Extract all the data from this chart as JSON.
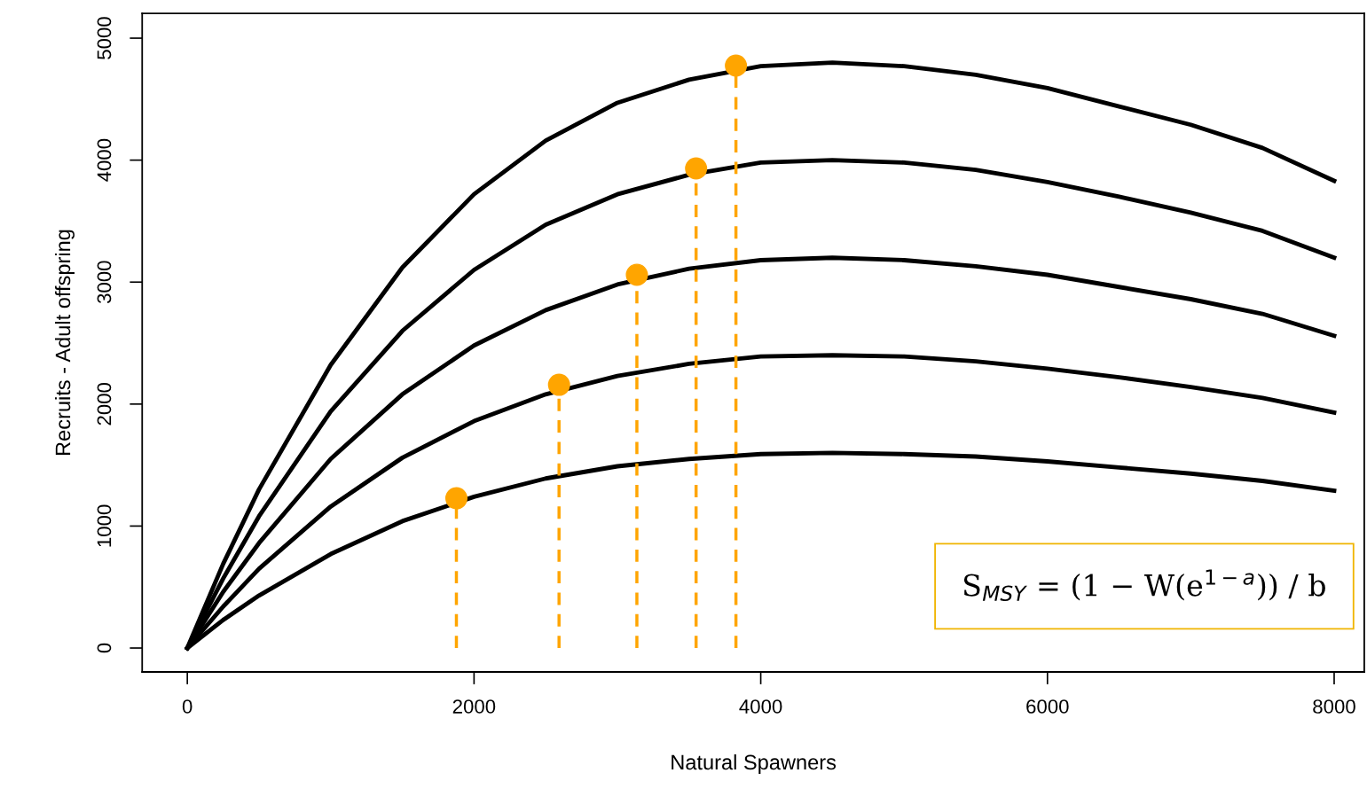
{
  "chart_data": {
    "type": "line",
    "xlabel": "Natural Spawners",
    "ylabel": "Recruits - Adult offspring",
    "x": [
      0,
      250,
      500,
      1000,
      1500,
      2000,
      2500,
      3000,
      3500,
      4000,
      4500,
      5000,
      5500,
      6000,
      6500,
      7000,
      7500,
      8000
    ],
    "series": [
      {
        "color": "#000000",
        "values": [
          0,
          230,
          430,
          770,
          1040,
          1240,
          1390,
          1490,
          1550,
          1590,
          1600,
          1590,
          1570,
          1530,
          1480,
          1430,
          1370,
          1290
        ]
      },
      {
        "color": "#000000",
        "values": [
          0,
          340,
          650,
          1160,
          1560,
          1860,
          2080,
          2230,
          2330,
          2390,
          2400,
          2390,
          2350,
          2290,
          2220,
          2140,
          2050,
          1930
        ]
      },
      {
        "color": "#000000",
        "values": [
          0,
          460,
          860,
          1550,
          2080,
          2480,
          2770,
          2980,
          3110,
          3180,
          3200,
          3180,
          3130,
          3060,
          2960,
          2860,
          2740,
          2560
        ]
      },
      {
        "color": "#000000",
        "values": [
          0,
          570,
          1080,
          1940,
          2600,
          3100,
          3470,
          3720,
          3880,
          3980,
          4000,
          3980,
          3920,
          3820,
          3700,
          3570,
          3420,
          3200
        ]
      },
      {
        "color": "#000000",
        "values": [
          0,
          690,
          1300,
          2320,
          3120,
          3720,
          4160,
          4470,
          4660,
          4770,
          4800,
          4770,
          4700,
          4590,
          4440,
          4290,
          4100,
          3830
        ]
      },
      {
        "type": "lollipop",
        "color": "#ffa500",
        "marker": "circle",
        "line_style": "dashed",
        "x": [
          1877,
          2593,
          3136,
          3549,
          3827
        ],
        "values": [
          1228,
          2158,
          3060,
          3932,
          4775
        ]
      }
    ],
    "xlim": [
      -315,
      8210
    ],
    "ylim": [
      -196,
      5203
    ],
    "xticks": [
      0,
      2000,
      4000,
      6000,
      8000
    ],
    "yticks": [
      0,
      1000,
      2000,
      3000,
      4000,
      5000
    ],
    "annotations": [
      "S$_{MSY}$ = (1 − W(e$^{1−a}$)) / b"
    ]
  }
}
